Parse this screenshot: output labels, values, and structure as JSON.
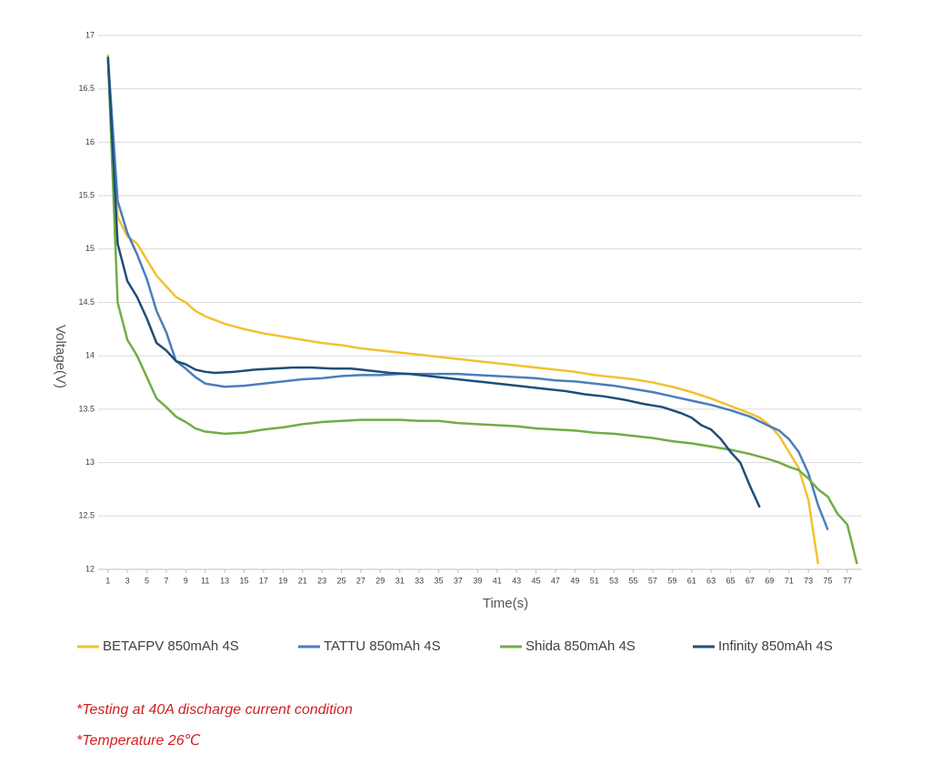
{
  "chart_data": {
    "type": "line",
    "x_label": "Time(s)",
    "y_label": "Voltage(V)",
    "xlim": [
      0,
      78.5
    ],
    "ylim": [
      12,
      17
    ],
    "xticks": [
      1,
      3,
      5,
      7,
      9,
      11,
      13,
      15,
      17,
      19,
      21,
      23,
      25,
      27,
      29,
      31,
      33,
      35,
      37,
      39,
      41,
      43,
      45,
      47,
      49,
      51,
      53,
      55,
      57,
      59,
      61,
      63,
      65,
      67,
      69,
      71,
      73,
      75,
      77
    ],
    "yticks": [
      12,
      12.5,
      13,
      13.5,
      14,
      14.5,
      15,
      15.5,
      16,
      16.5,
      17
    ],
    "grid": true,
    "legend": "bottom",
    "series": [
      {
        "name": "BETAFPV 850mAh 4S",
        "color": "#f2c12e",
        "x": [
          1,
          2,
          3,
          4,
          5,
          6,
          7,
          8,
          9,
          10,
          11,
          13,
          15,
          17,
          19,
          21,
          23,
          25,
          27,
          29,
          31,
          33,
          35,
          37,
          39,
          41,
          43,
          45,
          47,
          49,
          51,
          53,
          55,
          57,
          59,
          61,
          63,
          65,
          67,
          68,
          69,
          70,
          71,
          72,
          73,
          74
        ],
        "values": [
          16.82,
          15.3,
          15.12,
          15.05,
          14.9,
          14.75,
          14.65,
          14.55,
          14.5,
          14.42,
          14.37,
          14.3,
          14.25,
          14.21,
          14.18,
          14.15,
          14.12,
          14.1,
          14.07,
          14.05,
          14.03,
          14.01,
          13.99,
          13.97,
          13.95,
          13.93,
          13.91,
          13.89,
          13.87,
          13.85,
          13.82,
          13.8,
          13.78,
          13.75,
          13.71,
          13.66,
          13.6,
          13.53,
          13.46,
          13.42,
          13.35,
          13.25,
          13.1,
          12.95,
          12.65,
          12.05
        ]
      },
      {
        "name": "TATTU 850mAh 4S",
        "color": "#4a7ebb",
        "x": [
          1,
          2,
          3,
          4,
          5,
          6,
          7,
          8,
          9,
          10,
          11,
          13,
          15,
          17,
          19,
          21,
          23,
          25,
          27,
          29,
          31,
          33,
          35,
          37,
          39,
          41,
          43,
          45,
          47,
          49,
          51,
          53,
          55,
          57,
          59,
          61,
          63,
          65,
          67,
          69,
          70,
          71,
          72,
          73,
          74,
          75
        ],
        "values": [
          16.8,
          15.45,
          15.15,
          14.95,
          14.72,
          14.42,
          14.22,
          13.95,
          13.88,
          13.8,
          13.74,
          13.71,
          13.72,
          13.74,
          13.76,
          13.78,
          13.79,
          13.81,
          13.82,
          13.82,
          13.83,
          13.83,
          13.83,
          13.83,
          13.82,
          13.81,
          13.8,
          13.79,
          13.77,
          13.76,
          13.74,
          13.72,
          13.69,
          13.66,
          13.62,
          13.58,
          13.54,
          13.49,
          13.43,
          13.34,
          13.3,
          13.22,
          13.1,
          12.9,
          12.6,
          12.37
        ]
      },
      {
        "name": "Shida 850mAh 4S",
        "color": "#70ad47",
        "x": [
          1,
          2,
          3,
          4,
          5,
          6,
          7,
          8,
          9,
          10,
          11,
          13,
          15,
          17,
          19,
          21,
          23,
          25,
          27,
          29,
          31,
          33,
          35,
          37,
          39,
          41,
          43,
          45,
          47,
          49,
          51,
          53,
          55,
          57,
          59,
          61,
          63,
          65,
          67,
          69,
          70,
          71,
          72,
          73,
          74,
          75,
          76,
          77,
          78
        ],
        "values": [
          16.8,
          14.5,
          14.15,
          14.0,
          13.8,
          13.6,
          13.52,
          13.43,
          13.38,
          13.32,
          13.29,
          13.27,
          13.28,
          13.31,
          13.33,
          13.36,
          13.38,
          13.39,
          13.4,
          13.4,
          13.4,
          13.39,
          13.39,
          13.37,
          13.36,
          13.35,
          13.34,
          13.32,
          13.31,
          13.3,
          13.28,
          13.27,
          13.25,
          13.23,
          13.2,
          13.18,
          13.15,
          13.12,
          13.08,
          13.03,
          13.0,
          12.96,
          12.93,
          12.85,
          12.75,
          12.68,
          12.52,
          12.42,
          12.05
        ]
      },
      {
        "name": "Infinity 850mAh 4S",
        "color": "#1f4e79",
        "x": [
          1,
          2,
          3,
          4,
          5,
          6,
          7,
          8,
          9,
          10,
          11,
          12,
          14,
          16,
          18,
          20,
          22,
          24,
          26,
          28,
          30,
          32,
          34,
          36,
          38,
          40,
          42,
          44,
          46,
          48,
          50,
          52,
          54,
          56,
          58,
          60,
          61,
          62,
          63,
          64,
          65,
          66,
          67,
          68
        ],
        "values": [
          16.8,
          15.05,
          14.7,
          14.55,
          14.35,
          14.12,
          14.05,
          13.95,
          13.92,
          13.87,
          13.85,
          13.84,
          13.85,
          13.87,
          13.88,
          13.89,
          13.89,
          13.88,
          13.88,
          13.86,
          13.84,
          13.83,
          13.81,
          13.79,
          13.77,
          13.75,
          13.73,
          13.71,
          13.69,
          13.67,
          13.64,
          13.62,
          13.59,
          13.55,
          13.52,
          13.46,
          13.42,
          13.35,
          13.31,
          13.22,
          13.1,
          13.0,
          12.78,
          12.58
        ]
      }
    ],
    "notes": [
      "*Testing at 40A discharge current condition",
      "*Temperature 26℃"
    ]
  }
}
